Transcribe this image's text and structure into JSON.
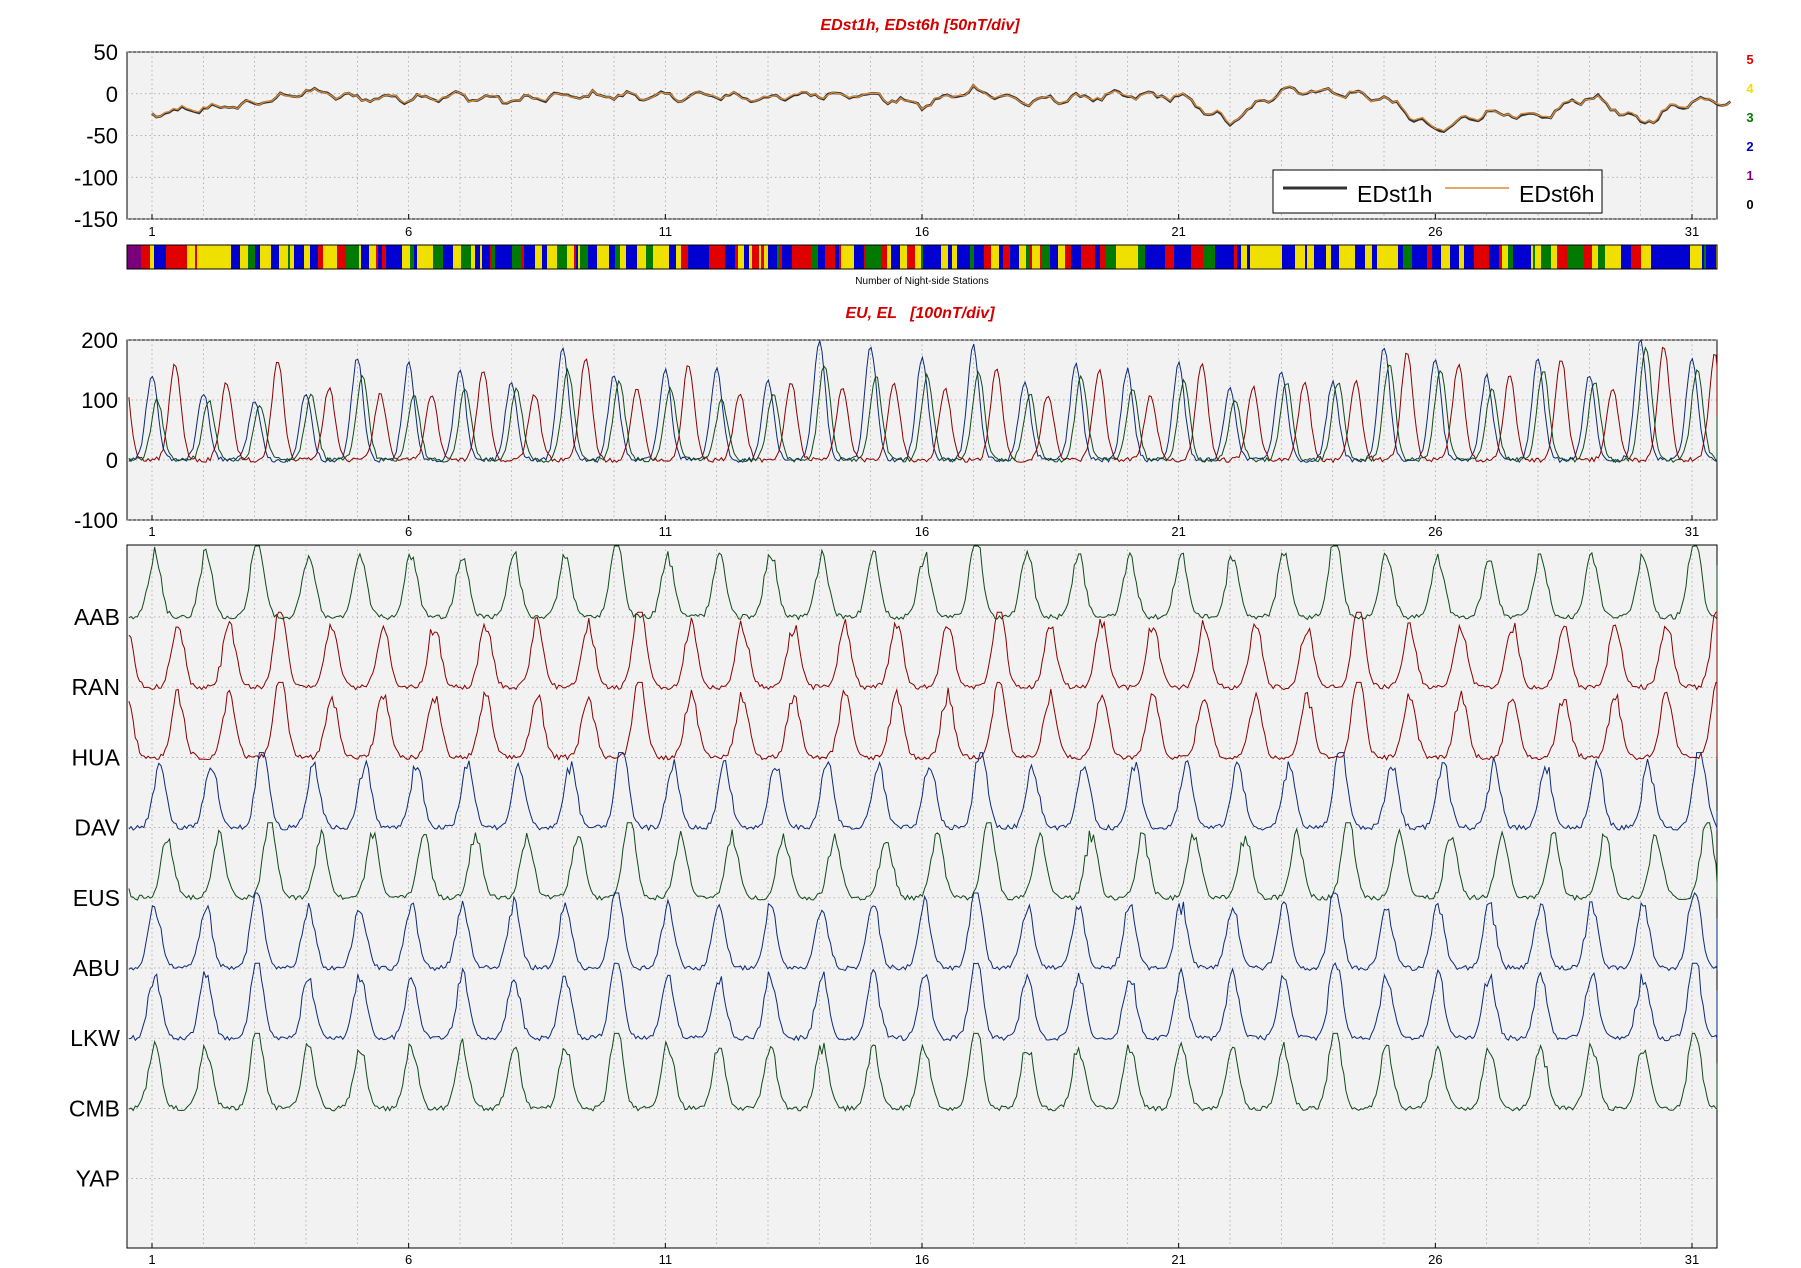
{
  "colors": {
    "title": "#d40000",
    "edst1h": "#333333",
    "edst6h": "#d98b3a",
    "panel_bg": "#f2f2f2",
    "eu": "#8b0000",
    "el_dark": "#0b2a7a",
    "el_green": "#0f4a1a",
    "grid": "#9a9a9a"
  },
  "panel1": {
    "title": "EDst1h, EDst6h [50nT/div]",
    "yticks": [
      "50",
      "0",
      "-50",
      "-100",
      "-150"
    ],
    "ylim": [
      -150,
      50
    ],
    "legend": {
      "series1": "EDst1h",
      "series2": "EDst6h"
    },
    "count_labels": [
      {
        "label": "5",
        "color": "#e00000"
      },
      {
        "label": "4",
        "color": "#f0e000"
      },
      {
        "label": "3",
        "color": "#007a00"
      },
      {
        "label": "2",
        "color": "#0000d0"
      },
      {
        "label": "1",
        "color": "#7a007a"
      },
      {
        "label": "0",
        "color": "#000000"
      }
    ]
  },
  "colorbar": {
    "label": "Number of Night-side Stations"
  },
  "panel2": {
    "title": "EU, EL   [100nT/div]",
    "yticks": [
      "200",
      "100",
      "0",
      "-100"
    ],
    "ylim": [
      -100,
      200
    ]
  },
  "panel3": {
    "stations": [
      "AAB",
      "RAN",
      "HUA",
      "DAV",
      "EUS",
      "ABU",
      "LKW",
      "CMB",
      "YAP"
    ]
  },
  "xticks": [
    "1",
    "6",
    "11",
    "16",
    "21",
    "26",
    "31"
  ],
  "chart_data": [
    {
      "type": "line",
      "title": "EDst1h, EDst6h [50nT/div]",
      "x": [
        1,
        2,
        3,
        4,
        5,
        6,
        7,
        8,
        9,
        10,
        11,
        12,
        13,
        14,
        15,
        16,
        17,
        18,
        19,
        20,
        21,
        22,
        23,
        24,
        25,
        26,
        27,
        28,
        29,
        30,
        31
      ],
      "series": [
        {
          "name": "EDst1h",
          "values": [
            -25,
            -18,
            -12,
            3,
            -5,
            -5,
            -3,
            -8,
            -3,
            -2,
            -4,
            -2,
            -6,
            0,
            -2,
            -14,
            5,
            -10,
            -5,
            -2,
            -3,
            -35,
            5,
            2,
            -5,
            -45,
            -22,
            -30,
            -2,
            -35,
            -8
          ]
        },
        {
          "name": "EDst6h",
          "values": [
            -25,
            -18,
            -12,
            2,
            -5,
            -5,
            -3,
            -8,
            -3,
            -2,
            -4,
            -2,
            -6,
            0,
            -2,
            -13,
            4,
            -10,
            -5,
            -2,
            -3,
            -33,
            5,
            2,
            -5,
            -40,
            -22,
            -28,
            -4,
            -30,
            -10
          ]
        }
      ],
      "xticks": [
        "1",
        "6",
        "11",
        "16",
        "21",
        "26",
        "31"
      ],
      "ylim": [
        -150,
        50
      ],
      "grid": true,
      "legend_position": "bottom-right"
    },
    {
      "type": "line",
      "title": "EU, EL   [100nT/div]",
      "x_range": [
        1,
        32
      ],
      "ylim": [
        -100,
        200
      ],
      "peak_days": [
        1,
        2,
        3,
        4,
        5,
        6,
        7,
        8,
        9,
        10,
        11,
        12,
        13,
        14,
        15,
        16,
        17,
        18,
        19,
        20,
        21,
        22,
        23,
        24,
        25,
        26,
        27,
        28,
        29,
        30,
        31
      ],
      "series": [
        {
          "name": "",
          "color": "#0b2a7a",
          "daily_peak_values": [
            140,
            110,
            100,
            110,
            170,
            160,
            150,
            130,
            190,
            140,
            150,
            150,
            130,
            200,
            190,
            170,
            190,
            130,
            160,
            150,
            160,
            120,
            150,
            130,
            190,
            170,
            140,
            170,
            140,
            200,
            170
          ]
        },
        {
          "name": "",
          "color": "#8b0000",
          "daily_peak_values": [
            160,
            130,
            165,
            120,
            110,
            110,
            150,
            110,
            170,
            120,
            160,
            110,
            130,
            120,
            130,
            120,
            150,
            110,
            150,
            110,
            160,
            120,
            130,
            130,
            180,
            160,
            140,
            170,
            120,
            190,
            180
          ]
        },
        {
          "name": "",
          "color": "#0f4a1a",
          "daily_peak_values": [
            100,
            100,
            90,
            110,
            140,
            110,
            120,
            120,
            150,
            130,
            120,
            100,
            110,
            160,
            140,
            140,
            150,
            110,
            140,
            120,
            130,
            100,
            130,
            130,
            160,
            150,
            120,
            150,
            130,
            190,
            150
          ]
        }
      ],
      "xticks": [
        "1",
        "6",
        "11",
        "16",
        "21",
        "26",
        "31"
      ],
      "grid": true
    },
    {
      "type": "line",
      "title": "",
      "categories": [
        "AAB",
        "RAN",
        "HUA",
        "DAV",
        "EUS",
        "ABU",
        "LKW",
        "CMB",
        "YAP"
      ],
      "series": [
        {
          "name": "AAB",
          "color": "#0f4a1a"
        },
        {
          "name": "RAN",
          "color": "#8b0000"
        },
        {
          "name": "HUA",
          "color": "#8b0000"
        },
        {
          "name": "DAV",
          "color": "#0b2a7a"
        },
        {
          "name": "EUS",
          "color": "#0f4a1a"
        },
        {
          "name": "ABU",
          "color": "#0b2a7a"
        },
        {
          "name": "LKW",
          "color": "#0b2a7a"
        },
        {
          "name": "CMB",
          "color": "#0f4a1a"
        },
        {
          "name": "YAP",
          "color": "#0f4a1a"
        }
      ],
      "xticks": [
        "1",
        "6",
        "11",
        "16",
        "21",
        "26",
        "31"
      ],
      "grid": true
    }
  ]
}
